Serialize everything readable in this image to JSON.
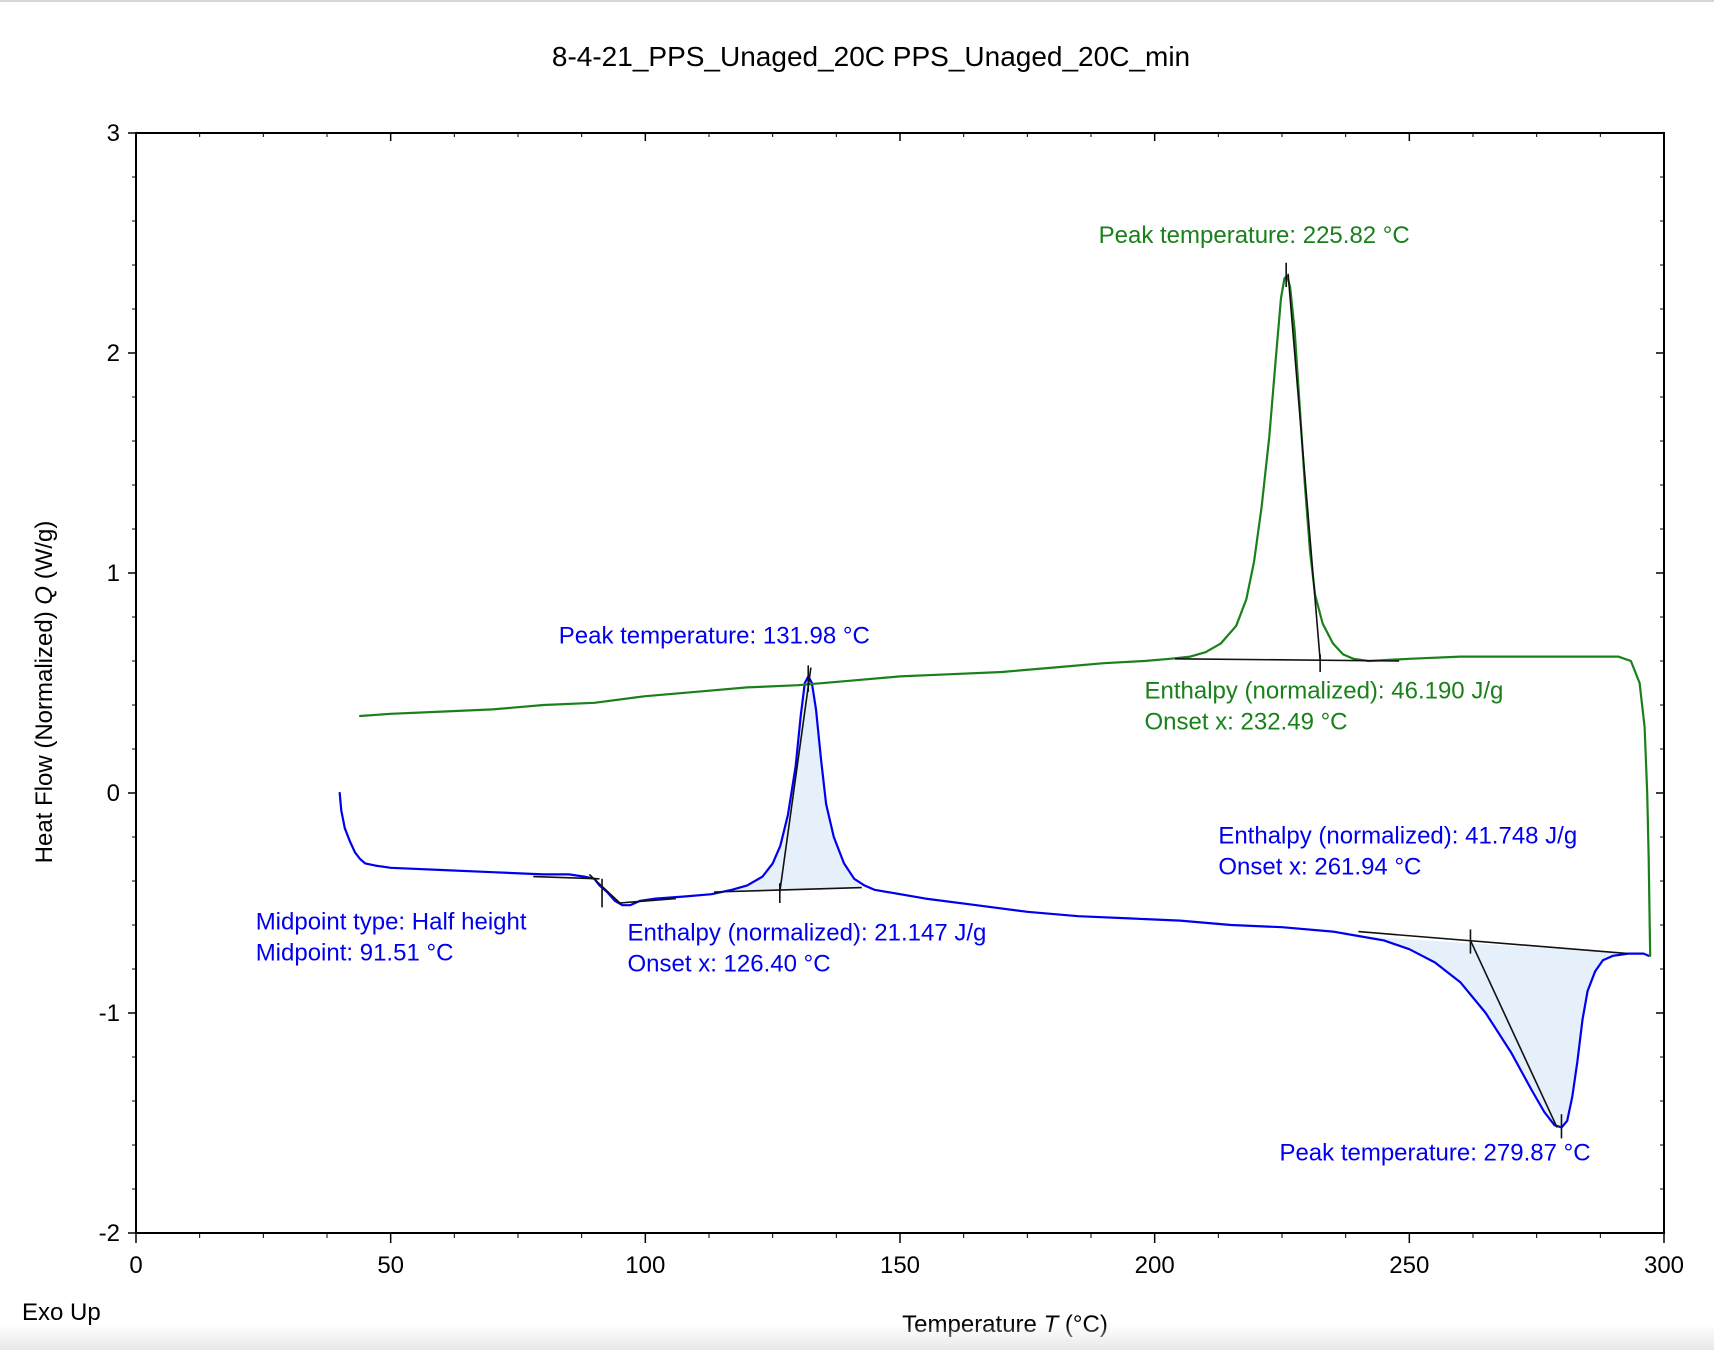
{
  "chart_data": {
    "type": "line",
    "title": "8-4-21_PPS_Unaged_20C PPS_Unaged_20C_min",
    "xlabel_main": "Temperature ",
    "xlabel_symbol": "T",
    "xlabel_unit": " (°C)",
    "ylabel_main": "Heat Flow (Normalized) ",
    "ylabel_symbol": "Q",
    "ylabel_unit": " (W/g)",
    "corner_note": "Exo Up",
    "xlim": [
      0,
      300
    ],
    "ylim": [
      -2,
      3
    ],
    "x_ticks": [
      0,
      50,
      100,
      150,
      200,
      250,
      300
    ],
    "y_ticks": [
      -2,
      -1,
      0,
      1,
      2,
      3
    ],
    "x_tick_labels": [
      "0",
      "50",
      "100",
      "150",
      "200",
      "250",
      "300"
    ],
    "y_tick_labels": [
      "-2",
      "-1",
      "0",
      "1",
      "2",
      "3"
    ],
    "grid": false,
    "series": [
      {
        "color": "#0000ee",
        "points": [
          [
            40,
            0
          ],
          [
            40.3,
            -0.08
          ],
          [
            41,
            -0.16
          ],
          [
            42,
            -0.22
          ],
          [
            43,
            -0.27
          ],
          [
            44,
            -0.3
          ],
          [
            45,
            -0.32
          ],
          [
            47,
            -0.33
          ],
          [
            50,
            -0.34
          ],
          [
            60,
            -0.35
          ],
          [
            70,
            -0.36
          ],
          [
            80,
            -0.37
          ],
          [
            85,
            -0.37
          ],
          [
            88,
            -0.38
          ],
          [
            90,
            -0.39
          ],
          [
            91,
            -0.42
          ],
          [
            92.5,
            -0.45
          ],
          [
            94,
            -0.49
          ],
          [
            95.5,
            -0.51
          ],
          [
            97,
            -0.51
          ],
          [
            99,
            -0.49
          ],
          [
            102,
            -0.48
          ],
          [
            108,
            -0.47
          ],
          [
            113,
            -0.46
          ],
          [
            117,
            -0.44
          ],
          [
            120,
            -0.42
          ],
          [
            123,
            -0.38
          ],
          [
            125,
            -0.32
          ],
          [
            126.5,
            -0.24
          ],
          [
            128,
            -0.1
          ],
          [
            129.5,
            0.12
          ],
          [
            130.5,
            0.35
          ],
          [
            131.3,
            0.5
          ],
          [
            132,
            0.53
          ],
          [
            132.7,
            0.5
          ],
          [
            133.5,
            0.38
          ],
          [
            134.5,
            0.15
          ],
          [
            135.5,
            -0.05
          ],
          [
            137,
            -0.2
          ],
          [
            139,
            -0.32
          ],
          [
            141,
            -0.39
          ],
          [
            143,
            -0.42
          ],
          [
            145,
            -0.44
          ],
          [
            155,
            -0.48
          ],
          [
            165,
            -0.51
          ],
          [
            175,
            -0.54
          ],
          [
            185,
            -0.56
          ],
          [
            195,
            -0.57
          ],
          [
            205,
            -0.58
          ],
          [
            215,
            -0.6
          ],
          [
            225,
            -0.61
          ],
          [
            235,
            -0.63
          ],
          [
            240,
            -0.65
          ],
          [
            245,
            -0.67
          ],
          [
            250,
            -0.71
          ],
          [
            255,
            -0.77
          ],
          [
            260,
            -0.86
          ],
          [
            265,
            -1.0
          ],
          [
            270,
            -1.18
          ],
          [
            274,
            -1.35
          ],
          [
            276.5,
            -1.45
          ],
          [
            278.5,
            -1.51
          ],
          [
            279.9,
            -1.52
          ],
          [
            281,
            -1.49
          ],
          [
            282,
            -1.38
          ],
          [
            283,
            -1.22
          ],
          [
            284,
            -1.03
          ],
          [
            285,
            -0.9
          ],
          [
            286.5,
            -0.81
          ],
          [
            288,
            -0.76
          ],
          [
            290,
            -0.74
          ],
          [
            293,
            -0.73
          ],
          [
            296,
            -0.73
          ],
          [
            297,
            -0.74
          ]
        ]
      },
      {
        "color": "#1a801a",
        "points": [
          [
            44,
            0.35
          ],
          [
            50,
            0.36
          ],
          [
            60,
            0.37
          ],
          [
            70,
            0.38
          ],
          [
            80,
            0.4
          ],
          [
            90,
            0.41
          ],
          [
            100,
            0.44
          ],
          [
            110,
            0.46
          ],
          [
            120,
            0.48
          ],
          [
            130,
            0.49
          ],
          [
            140,
            0.51
          ],
          [
            150,
            0.53
          ],
          [
            160,
            0.54
          ],
          [
            170,
            0.55
          ],
          [
            180,
            0.57
          ],
          [
            190,
            0.59
          ],
          [
            198,
            0.6
          ],
          [
            203,
            0.61
          ],
          [
            207,
            0.62
          ],
          [
            210,
            0.64
          ],
          [
            213,
            0.68
          ],
          [
            216,
            0.76
          ],
          [
            218,
            0.88
          ],
          [
            219.5,
            1.05
          ],
          [
            221,
            1.3
          ],
          [
            222.5,
            1.62
          ],
          [
            223.8,
            1.98
          ],
          [
            224.8,
            2.25
          ],
          [
            225.5,
            2.34
          ],
          [
            226,
            2.35
          ],
          [
            226.6,
            2.3
          ],
          [
            227.5,
            2.1
          ],
          [
            228.5,
            1.75
          ],
          [
            229.5,
            1.4
          ],
          [
            230.5,
            1.1
          ],
          [
            231.5,
            0.9
          ],
          [
            233,
            0.77
          ],
          [
            235,
            0.68
          ],
          [
            237,
            0.63
          ],
          [
            239,
            0.61
          ],
          [
            242,
            0.6
          ],
          [
            250,
            0.61
          ],
          [
            260,
            0.62
          ],
          [
            270,
            0.62
          ],
          [
            280,
            0.62
          ],
          [
            288,
            0.62
          ],
          [
            291,
            0.62
          ],
          [
            293.5,
            0.6
          ],
          [
            295.2,
            0.5
          ],
          [
            296.2,
            0.3
          ],
          [
            296.7,
            0.0
          ],
          [
            297,
            -0.3
          ],
          [
            297.2,
            -0.6
          ],
          [
            297.3,
            -0.74
          ]
        ]
      }
    ],
    "analyses": [
      {
        "kind": "peak-integration",
        "color": "#0000ee",
        "fill": "#e6f0fa",
        "baseline": [
          [
            113.5,
            -0.45
          ],
          [
            142.5,
            -0.43
          ]
        ],
        "onset_line": [
          [
            126.4,
            -0.45
          ],
          [
            132.5,
            0.57
          ]
        ],
        "peak_marker": [
          [
            131.98,
            0.58
          ],
          [
            131.98,
            0.46
          ]
        ],
        "onset_marker": [
          [
            126.4,
            -0.41
          ],
          [
            126.4,
            -0.5
          ]
        ],
        "area": [
          [
            113.5,
            -0.45
          ],
          [
            117,
            -0.44
          ],
          [
            120,
            -0.42
          ],
          [
            123,
            -0.38
          ],
          [
            125,
            -0.32
          ],
          [
            126.5,
            -0.24
          ],
          [
            128,
            -0.1
          ],
          [
            129.5,
            0.12
          ],
          [
            130.5,
            0.35
          ],
          [
            131.3,
            0.5
          ],
          [
            132,
            0.53
          ],
          [
            132.7,
            0.5
          ],
          [
            133.5,
            0.38
          ],
          [
            134.5,
            0.15
          ],
          [
            135.5,
            -0.05
          ],
          [
            137,
            -0.2
          ],
          [
            139,
            -0.32
          ],
          [
            141,
            -0.39
          ],
          [
            142.5,
            -0.43
          ]
        ]
      },
      {
        "kind": "peak-integration",
        "color": "#0000ee",
        "fill": "#e6f0fa",
        "baseline": [
          [
            240,
            -0.63
          ],
          [
            293,
            -0.73
          ]
        ],
        "onset_line": [
          [
            262,
            -0.67
          ],
          [
            279,
            -1.52
          ]
        ],
        "peak_marker": [
          [
            279.87,
            -1.46
          ],
          [
            279.87,
            -1.57
          ]
        ],
        "onset_marker": [
          [
            262,
            -0.62
          ],
          [
            262,
            -0.73
          ]
        ],
        "area": [
          [
            240,
            -0.65
          ],
          [
            245,
            -0.67
          ],
          [
            250,
            -0.71
          ],
          [
            255,
            -0.77
          ],
          [
            260,
            -0.86
          ],
          [
            265,
            -1.0
          ],
          [
            270,
            -1.18
          ],
          [
            274,
            -1.35
          ],
          [
            276.5,
            -1.45
          ],
          [
            278.5,
            -1.51
          ],
          [
            279.9,
            -1.52
          ],
          [
            281,
            -1.49
          ],
          [
            282,
            -1.38
          ],
          [
            283,
            -1.22
          ],
          [
            284,
            -1.03
          ],
          [
            285,
            -0.9
          ],
          [
            286.5,
            -0.81
          ],
          [
            288,
            -0.76
          ],
          [
            290,
            -0.74
          ],
          [
            293,
            -0.73
          ]
        ]
      },
      {
        "kind": "glass-transition",
        "color": "#000000",
        "baseline_before": [
          [
            78,
            -0.38
          ],
          [
            91,
            -0.39
          ]
        ],
        "baseline_after": [
          [
            95,
            -0.5
          ],
          [
            106,
            -0.48
          ]
        ],
        "tangent": [
          [
            89,
            -0.37
          ],
          [
            95,
            -0.5
          ]
        ],
        "midpoint_marker": [
          [
            91.5,
            -0.39
          ],
          [
            91.5,
            -0.52
          ]
        ]
      },
      {
        "kind": "peak-integration",
        "color": "#1a801a",
        "baseline": [
          [
            204,
            0.61
          ],
          [
            248,
            0.6
          ]
        ],
        "onset_line": [
          [
            226.2,
            2.36
          ],
          [
            232.5,
            0.6
          ]
        ],
        "peak_marker": [
          [
            225.82,
            2.41
          ],
          [
            225.82,
            2.3
          ]
        ],
        "onset_marker": [
          [
            232.49,
            0.63
          ],
          [
            232.49,
            0.55
          ]
        ]
      }
    ],
    "annotations": [
      {
        "color": "#1a801a",
        "x": 189,
        "y": 2.5,
        "lines": [
          "Peak temperature: 225.82 °C"
        ]
      },
      {
        "color": "#1a801a",
        "x": 198,
        "y": 0.43,
        "lines": [
          "Enthalpy (normalized): 46.190 J/g",
          "Onset x: 232.49 °C"
        ]
      },
      {
        "color": "#0000ee",
        "x": 83,
        "y": 0.68,
        "lines": [
          "Peak temperature: 131.98 °C"
        ]
      },
      {
        "color": "#0000ee",
        "x": 23.5,
        "y": -0.62,
        "lines": [
          "Midpoint type: Half height",
          "Midpoint: 91.51 °C"
        ]
      },
      {
        "color": "#0000ee",
        "x": 96.5,
        "y": -0.67,
        "lines": [
          "Enthalpy (normalized): 21.147 J/g",
          "Onset x: 126.40 °C"
        ]
      },
      {
        "color": "#0000ee",
        "x": 212.5,
        "y": -0.23,
        "lines": [
          "Enthalpy (normalized): 41.748 J/g",
          "Onset x: 261.94 °C"
        ]
      },
      {
        "color": "#0000ee",
        "x": 224.5,
        "y": -1.67,
        "lines": [
          "Peak temperature: 279.87 °C"
        ]
      }
    ]
  }
}
